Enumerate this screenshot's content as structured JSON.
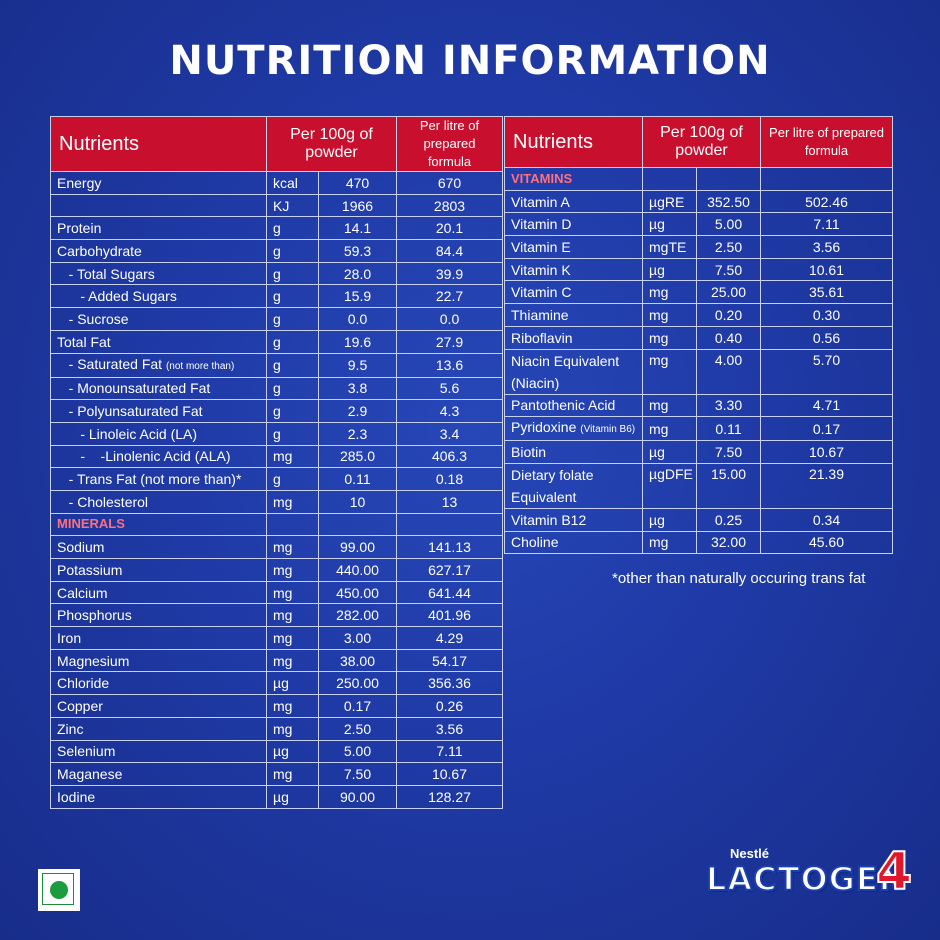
{
  "title": "NUTRITION INFORMATION",
  "headers": {
    "nutrients": "Nutrients",
    "per100": "Per 100g of powder",
    "perLitre": "Per litre of prepared formula"
  },
  "left_rows": [
    {
      "name": "Energy",
      "unit": "kcal",
      "v100": "470",
      "vl": "670"
    },
    {
      "name": "",
      "unit": "KJ",
      "v100": "1966",
      "vl": "2803"
    },
    {
      "name": "Protein",
      "unit": "g",
      "v100": "14.1",
      "vl": "20.1"
    },
    {
      "name": "Carbohydrate",
      "unit": "g",
      "v100": "59.3",
      "vl": "84.4"
    },
    {
      "name": "   - Total Sugars",
      "unit": "g",
      "v100": "28.0",
      "vl": "39.9"
    },
    {
      "name": "      - Added Sugars",
      "unit": "g",
      "v100": "15.9",
      "vl": "22.7"
    },
    {
      "name": "   - Sucrose",
      "unit": "g",
      "v100": "0.0",
      "vl": "0.0"
    },
    {
      "name": "Total Fat",
      "unit": "g",
      "v100": "19.6",
      "vl": "27.9"
    },
    {
      "name": "   - Saturated Fat",
      "note": "(not more than)",
      "unit": "g",
      "v100": "9.5",
      "vl": "13.6"
    },
    {
      "name": "   - Monounsaturated Fat",
      "unit": "g",
      "v100": "3.8",
      "vl": "5.6"
    },
    {
      "name": "   - Polyunsaturated Fat",
      "unit": "g",
      "v100": "2.9",
      "vl": "4.3"
    },
    {
      "name": "      - Linoleic Acid (LA)",
      "unit": "g",
      "v100": "2.3",
      "vl": "3.4"
    },
    {
      "name": "      -    -Linolenic Acid (ALA)",
      "unit": "mg",
      "v100": "285.0",
      "vl": "406.3"
    },
    {
      "name": "   - Trans Fat (not more than)*",
      "unit": "g",
      "v100": "0.11",
      "vl": "0.18"
    },
    {
      "name": "   - Cholesterol",
      "unit": "mg",
      "v100": "10",
      "vl": "13"
    },
    {
      "section": "MINERALS"
    },
    {
      "name": "Sodium",
      "unit": "mg",
      "v100": "99.00",
      "vl": "141.13"
    },
    {
      "name": "Potassium",
      "unit": "mg",
      "v100": "440.00",
      "vl": "627.17"
    },
    {
      "name": "Calcium",
      "unit": "mg",
      "v100": "450.00",
      "vl": "641.44"
    },
    {
      "name": "Phosphorus",
      "unit": "mg",
      "v100": "282.00",
      "vl": "401.96"
    },
    {
      "name": "Iron",
      "unit": "mg",
      "v100": "3.00",
      "vl": "4.29"
    },
    {
      "name": "Magnesium",
      "unit": "mg",
      "v100": "38.00",
      "vl": "54.17"
    },
    {
      "name": "Chloride",
      "unit": "µg",
      "v100": "250.00",
      "vl": "356.36"
    },
    {
      "name": "Copper",
      "unit": "mg",
      "v100": "0.17",
      "vl": "0.26"
    },
    {
      "name": "Zinc",
      "unit": "mg",
      "v100": "2.50",
      "vl": "3.56"
    },
    {
      "name": "Selenium",
      "unit": "µg",
      "v100": "5.00",
      "vl": "7.11"
    },
    {
      "name": "Maganese",
      "unit": "mg",
      "v100": "7.50",
      "vl": "10.67"
    },
    {
      "name": "Iodine",
      "unit": "µg",
      "v100": "90.00",
      "vl": "128.27"
    }
  ],
  "right_rows": [
    {
      "section": "VITAMINS"
    },
    {
      "name": "Vitamin A",
      "unit": "µgRE",
      "v100": "352.50",
      "vl": "502.46"
    },
    {
      "name": "Vitamin D",
      "unit": "µg",
      "v100": "5.00",
      "vl": "7.11"
    },
    {
      "name": "Vitamin E",
      "unit": "mgTE",
      "v100": "2.50",
      "vl": "3.56"
    },
    {
      "name": "Vitamin K",
      "unit": "µg",
      "v100": "7.50",
      "vl": "10.61"
    },
    {
      "name": "Vitamin C",
      "unit": "mg",
      "v100": "25.00",
      "vl": "35.61"
    },
    {
      "name": "Thiamine",
      "unit": "mg",
      "v100": "0.20",
      "vl": "0.30"
    },
    {
      "name": "Riboflavin",
      "unit": "mg",
      "v100": "0.40",
      "vl": "0.56"
    },
    {
      "name": "Niacin Equivalent",
      "name2": "(Niacin)",
      "unit": "mg",
      "v100": "4.00",
      "vl": "5.70"
    },
    {
      "name": "Pantothenic Acid",
      "unit": "mg",
      "v100": "3.30",
      "vl": "4.71"
    },
    {
      "name": "Pyridoxine",
      "note": "(Vitamin B6)",
      "unit": "mg",
      "v100": "0.11",
      "vl": "0.17"
    },
    {
      "name": "Biotin",
      "unit": "µg",
      "v100": "7.50",
      "vl": "10.67"
    },
    {
      "name": "Dietary folate",
      "name2": "Equivalent",
      "unit": "µgDFE",
      "v100": "15.00",
      "vl": "21.39"
    },
    {
      "name": "Vitamin B12",
      "unit": "µg",
      "v100": "0.25",
      "vl": "0.34"
    },
    {
      "name": "Choline",
      "unit": "mg",
      "v100": "32.00",
      "vl": "45.60"
    }
  ],
  "footnote": "*other than naturally occuring trans fat",
  "brand": {
    "maker": "Nestlé",
    "product": "LACTOGEN",
    "stage": "4"
  }
}
